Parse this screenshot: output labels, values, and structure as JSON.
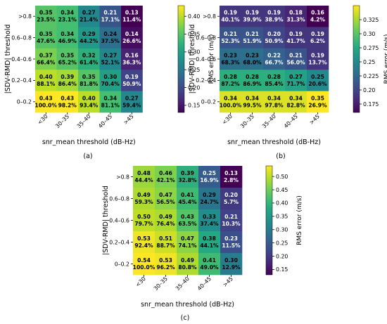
{
  "chart_data": [
    {
      "type": "heatmap",
      "caption": "(a)",
      "xlabel": "snr_mean threshold (dB-Hz)",
      "ylabel": "|SDV-RMD| threshold",
      "x_categories": [
        "<30",
        "30–35",
        "35–40",
        "40–45",
        ">45"
      ],
      "y_categories": [
        ">0.8",
        "0.6–0.8",
        "0.4–0.6",
        "0.2–0.4",
        "0–0.2"
      ],
      "values": [
        [
          0.35,
          0.34,
          0.27,
          0.21,
          0.13
        ],
        [
          0.35,
          0.34,
          0.29,
          0.24,
          0.14
        ],
        [
          0.37,
          0.35,
          0.32,
          0.27,
          0.16
        ],
        [
          0.4,
          0.39,
          0.35,
          0.3,
          0.19
        ],
        [
          0.43,
          0.43,
          0.4,
          0.34,
          0.27
        ]
      ],
      "percentages": [
        [
          "23.5%",
          "23.1%",
          "21.4%",
          "17.1%",
          "11.4%"
        ],
        [
          "47.6%",
          "46.9%",
          "44.2%",
          "37.5%",
          "26.6%"
        ],
        [
          "66.4%",
          "65.2%",
          "61.4%",
          "52.1%",
          "36.3%"
        ],
        [
          "88.1%",
          "86.4%",
          "81.8%",
          "70.4%",
          "50.9%"
        ],
        [
          "100.0%",
          "98.2%",
          "93.4%",
          "81.1%",
          "59.4%"
        ]
      ],
      "colorbar": {
        "label": "RMS error (m/s)",
        "range": [
          0.13,
          0.43
        ],
        "ticks": [
          0.15,
          0.2,
          0.25,
          0.3,
          0.35,
          0.4
        ]
      },
      "colormap": "viridis"
    },
    {
      "type": "heatmap",
      "caption": "(b)",
      "xlabel": "snr_mean threshold (dB-Hz)",
      "ylabel": "|SDV-RMD| threshold",
      "x_categories": [
        "<30",
        "30–35",
        "35–40",
        "40–45",
        ">45"
      ],
      "y_categories": [
        ">0.8",
        "0.6–0.8",
        "0.4–0.6",
        "0.2–0.4",
        "0–0.2"
      ],
      "values": [
        [
          0.19,
          0.19,
          0.19,
          0.18,
          0.16
        ],
        [
          0.21,
          0.21,
          0.2,
          0.19,
          0.19
        ],
        [
          0.23,
          0.23,
          0.22,
          0.21,
          0.19
        ],
        [
          0.28,
          0.28,
          0.28,
          0.27,
          0.25
        ],
        [
          0.34,
          0.34,
          0.34,
          0.34,
          0.35
        ]
      ],
      "percentages": [
        [
          "40.1%",
          "39.9%",
          "38.9%",
          "31.3%",
          "4.2%"
        ],
        [
          "52.3%",
          "51.9%",
          "50.9%",
          "41.7%",
          "6.2%"
        ],
        [
          "68.3%",
          "68.0%",
          "66.7%",
          "56.0%",
          "13.7%"
        ],
        [
          "87.2%",
          "86.9%",
          "85.4%",
          "71.7%",
          "20.6%"
        ],
        [
          "100.0%",
          "99.5%",
          "97.8%",
          "82.8%",
          "26.9%"
        ]
      ],
      "colorbar": {
        "label": "RMS error (m/s)",
        "range": [
          0.16,
          0.35
        ],
        "ticks": [
          0.175,
          0.2,
          0.225,
          0.25,
          0.275,
          0.3,
          0.325
        ]
      },
      "colormap": "viridis"
    },
    {
      "type": "heatmap",
      "caption": "(c)",
      "xlabel": "snr_mean threshold (dB-Hz)",
      "ylabel": "|SDV-RMD| threshold",
      "x_categories": [
        "<30",
        "30–35",
        "35–40",
        "40–45",
        ">45"
      ],
      "y_categories": [
        ">0.8",
        "0.6–0.8",
        "0.4–0.6",
        "0.2–0.4",
        "0–0.2"
      ],
      "values": [
        [
          0.48,
          0.46,
          0.39,
          0.25,
          0.13
        ],
        [
          0.49,
          0.47,
          0.41,
          0.29,
          0.2
        ],
        [
          0.5,
          0.49,
          0.43,
          0.33,
          0.21
        ],
        [
          0.53,
          0.51,
          0.47,
          0.38,
          0.23
        ],
        [
          0.54,
          0.53,
          0.49,
          0.41,
          0.3
        ]
      ],
      "percentages": [
        [
          "44.4%",
          "42.1%",
          "32.8%",
          "16.9%",
          "2.8%"
        ],
        [
          "59.3%",
          "56.5%",
          "45.4%",
          "24.7%",
          "5.7%"
        ],
        [
          "79.7%",
          "76.4%",
          "63.5%",
          "37.4%",
          "10.3%"
        ],
        [
          "92.4%",
          "88.7%",
          "74.1%",
          "44.1%",
          "11.5%"
        ],
        [
          "100.0%",
          "96.2%",
          "80.8%",
          "49.0%",
          "12.9%"
        ]
      ],
      "colorbar": {
        "label": "RMS error (m/s)",
        "range": [
          0.13,
          0.54
        ],
        "ticks": [
          0.15,
          0.2,
          0.25,
          0.3,
          0.35,
          0.4,
          0.45,
          0.5
        ]
      },
      "colormap": "viridis"
    }
  ]
}
